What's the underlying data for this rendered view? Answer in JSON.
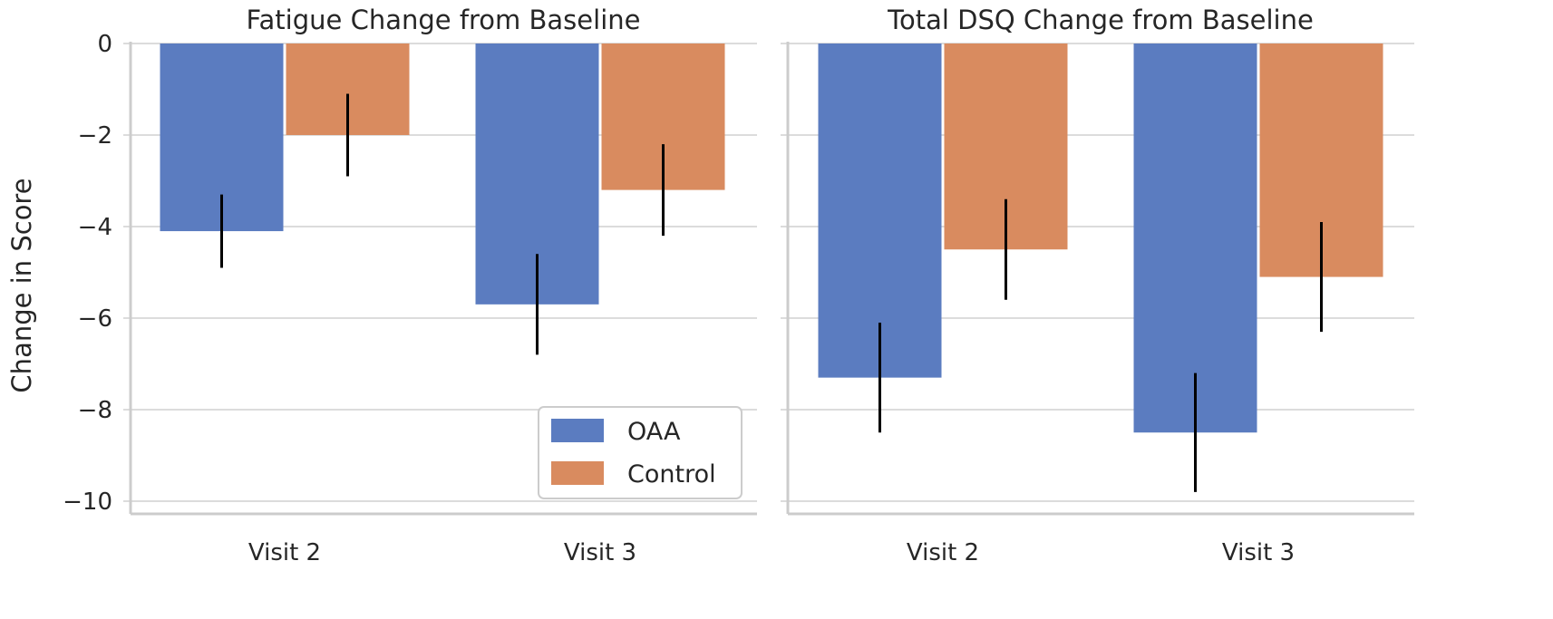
{
  "colors": {
    "OAA": "#5b7cc0",
    "Control": "#d98b5f",
    "error": "#000000",
    "grid": "#dcdcdc",
    "spine": "#cccccc",
    "text": "#262626"
  },
  "chart_data": [
    {
      "type": "bar",
      "title": "Fatigue Change from Baseline",
      "xlabel": "",
      "ylabel": "Change in Score",
      "ylim": [
        -10.3,
        0
      ],
      "yticks": [
        0,
        -2,
        -4,
        -6,
        -8,
        -10
      ],
      "ytick_labels": [
        "0",
        "−2",
        "−4",
        "−6",
        "−8",
        "−10"
      ],
      "categories": [
        "Visit 2",
        "Visit 3"
      ],
      "series": [
        {
          "name": "OAA",
          "values": [
            -4.1,
            -5.7
          ],
          "error_low": [
            -4.9,
            -6.8
          ],
          "error_high": [
            -3.3,
            -4.6
          ]
        },
        {
          "name": "Control",
          "values": [
            -2.0,
            -3.2
          ],
          "error_low": [
            -2.9,
            -4.2
          ],
          "error_high": [
            -1.1,
            -2.2
          ]
        }
      ],
      "legend": {
        "position": "bottom-right",
        "entries": [
          "OAA",
          "Control"
        ]
      }
    },
    {
      "type": "bar",
      "title": "Total DSQ Change from Baseline",
      "xlabel": "",
      "ylabel": "",
      "ylim": [
        -10.3,
        0
      ],
      "yticks": [
        0,
        -2,
        -4,
        -6,
        -8,
        -10
      ],
      "ytick_labels": [
        "",
        "",
        "",
        "",
        "",
        ""
      ],
      "categories": [
        "Visit 2",
        "Visit 3"
      ],
      "series": [
        {
          "name": "OAA",
          "values": [
            -7.3,
            -8.5
          ],
          "error_low": [
            -8.5,
            -9.8
          ],
          "error_high": [
            -6.1,
            -7.2
          ]
        },
        {
          "name": "Control",
          "values": [
            -4.5,
            -5.1
          ],
          "error_low": [
            -5.6,
            -6.3
          ],
          "error_high": [
            -3.4,
            -3.9
          ]
        }
      ]
    }
  ]
}
